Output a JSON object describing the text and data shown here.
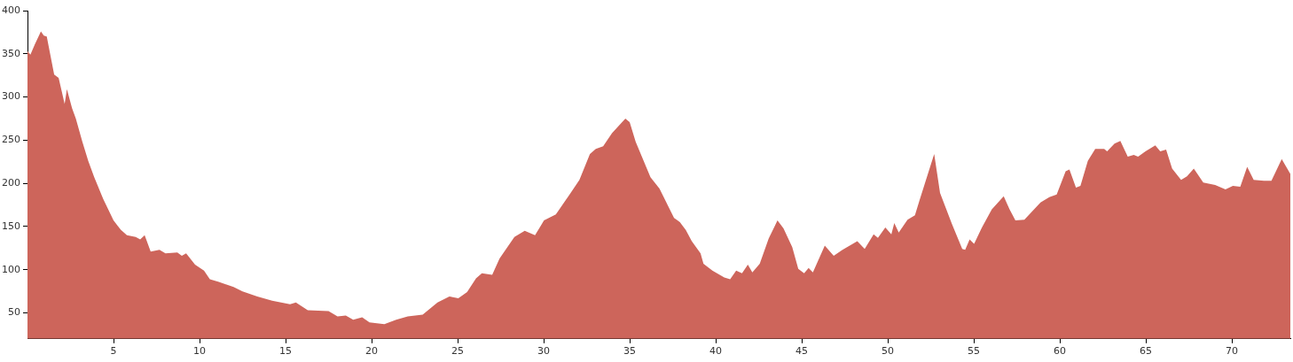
{
  "chart_data": {
    "type": "area",
    "x": [
      0,
      0.17,
      0.43,
      0.78,
      0.95,
      1.12,
      1.55,
      1.81,
      2.16,
      2.29,
      2.59,
      2.81,
      3.19,
      3.53,
      3.88,
      4.4,
      5,
      5.43,
      5.78,
      6.29,
      6.55,
      6.81,
      7.16,
      7.67,
      8.02,
      8.71,
      8.97,
      9.22,
      9.74,
      10.26,
      10.6,
      11.12,
      11.98,
      12.5,
      13.36,
      14.22,
      15.26,
      15.6,
      16.29,
      17.5,
      18.02,
      18.5,
      18.93,
      19.45,
      19.88,
      20.74,
      21.43,
      22.1,
      22.97,
      23.83,
      24.52,
      25.04,
      25.55,
      26.07,
      26.41,
      27.01,
      27.44,
      28.3,
      28.9,
      29.5,
      30.02,
      30.71,
      31.57,
      32.08,
      32.69,
      33.03,
      33.46,
      33.97,
      34.75,
      35,
      35.35,
      36.21,
      36.73,
      37.58,
      37.92,
      38.26,
      38.61,
      39.12,
      39.29,
      39.81,
      40.5,
      40.84,
      41.19,
      41.53,
      41.87,
      42.13,
      42.56,
      43.08,
      43.59,
      43.94,
      44.45,
      44.8,
      45.14,
      45.4,
      45.65,
      46.34,
      46.86,
      47.37,
      48.23,
      48.66,
      49.18,
      49.43,
      49.86,
      50.21,
      50.38,
      50.64,
      51.15,
      51.58,
      51.84,
      52.7,
      53.04,
      53.73,
      54.33,
      54.5,
      54.76,
      55.02,
      55.45,
      56.05,
      56.74,
      57.08,
      57.42,
      57.94,
      58.88,
      59.39,
      59.82,
      60.34,
      60.56,
      60.94,
      61.2,
      61.63,
      62.06,
      62.58,
      62.75,
      63.18,
      63.52,
      63.95,
      64.3,
      64.55,
      64.98,
      65.55,
      65.84,
      66.18,
      66.53,
      67.05,
      67.39,
      67.79,
      68.34,
      69.03,
      69.63,
      70.06,
      70.49,
      70.89,
      71.27,
      71.87,
      72.3,
      72.9,
      73.4
    ],
    "series": [
      {
        "color": "#cd655b",
        "values": [
          353,
          349,
          361,
          376,
          371,
          370,
          326,
          322,
          292,
          309,
          287,
          275,
          248,
          226,
          207,
          182,
          157,
          146,
          140,
          138,
          135,
          140,
          121,
          123,
          119,
          120,
          116,
          119,
          106,
          99,
          89,
          86,
          80,
          75,
          69,
          64,
          60,
          62,
          53,
          52,
          46,
          47,
          42,
          45,
          39,
          37,
          42,
          46,
          48,
          62,
          69,
          67,
          74,
          90,
          96,
          94,
          113,
          138,
          145,
          140,
          157,
          164,
          189,
          204,
          234,
          240,
          243,
          258,
          275,
          271,
          248,
          207,
          194,
          160,
          155,
          146,
          133,
          119,
          107,
          99,
          91,
          89,
          99,
          96,
          106,
          97,
          107,
          136,
          157,
          148,
          126,
          101,
          96,
          102,
          97,
          128,
          116,
          123,
          133,
          124,
          141,
          137,
          149,
          141,
          154,
          143,
          158,
          163,
          180,
          234,
          189,
          153,
          124,
          123,
          135,
          130,
          148,
          170,
          185,
          170,
          157,
          158,
          178,
          184,
          187,
          214,
          216,
          195,
          197,
          226,
          240,
          240,
          237,
          246,
          249,
          231,
          233,
          231,
          237,
          244,
          237,
          239,
          217,
          204,
          208,
          217,
          201,
          198,
          193,
          197,
          196,
          219,
          204,
          203,
          203,
          228,
          211
        ]
      }
    ],
    "xlim": [
      0,
      73.4
    ],
    "ylim": [
      20,
      400
    ],
    "xticks": [
      5,
      10,
      15,
      20,
      25,
      30,
      35,
      40,
      45,
      50,
      55,
      60,
      65,
      70
    ],
    "yticks": [
      50,
      100,
      150,
      200,
      250,
      300,
      350,
      400
    ],
    "grid": false,
    "legend": false
  }
}
